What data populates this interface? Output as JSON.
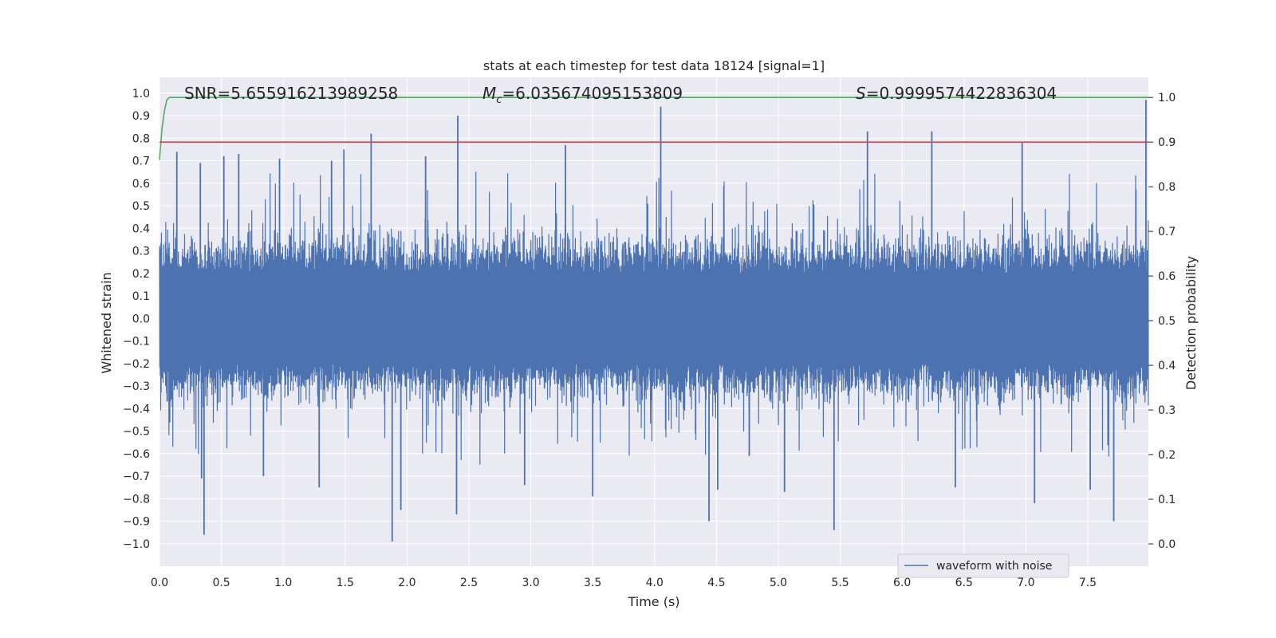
{
  "chart_data": {
    "type": "line",
    "title": "stats at each timestep for test data 18124 [signal=1]",
    "xlabel": "Time (s)",
    "ylabel_left": "Whitened strain",
    "ylabel_right": "Detection probability",
    "xlim": [
      0.0,
      7.99
    ],
    "ylim_left": [
      -1.1,
      1.07
    ],
    "ylim_right": [
      -0.05,
      1.045
    ],
    "x_ticks": [
      "0.0",
      "0.5",
      "1.0",
      "1.5",
      "2.0",
      "2.5",
      "3.0",
      "3.5",
      "4.0",
      "4.5",
      "5.0",
      "5.5",
      "6.0",
      "6.5",
      "7.0",
      "7.5"
    ],
    "x_tick_values": [
      0.0,
      0.5,
      1.0,
      1.5,
      2.0,
      2.5,
      3.0,
      3.5,
      4.0,
      4.5,
      5.0,
      5.5,
      6.0,
      6.5,
      7.0,
      7.5
    ],
    "y_left_ticks": [
      "1.0",
      "0.9",
      "0.8",
      "0.7",
      "0.6",
      "0.5",
      "0.4",
      "0.3",
      "0.2",
      "0.1",
      "0.0",
      "−0.1",
      "−0.2",
      "−0.3",
      "−0.4",
      "−0.5",
      "−0.6",
      "−0.7",
      "−0.8",
      "−0.9",
      "−1.0"
    ],
    "y_left_tick_values": [
      1.0,
      0.9,
      0.8,
      0.7,
      0.6,
      0.5,
      0.4,
      0.3,
      0.2,
      0.1,
      0.0,
      -0.1,
      -0.2,
      -0.3,
      -0.4,
      -0.5,
      -0.6,
      -0.7,
      -0.8,
      -0.9,
      -1.0
    ],
    "y_right_ticks": [
      "1.0",
      "0.9",
      "0.8",
      "0.7",
      "0.6",
      "0.5",
      "0.4",
      "0.3",
      "0.2",
      "0.1",
      "0.0"
    ],
    "y_right_tick_values": [
      1.0,
      0.9,
      0.8,
      0.7,
      0.6,
      0.5,
      0.4,
      0.3,
      0.2,
      0.1,
      0.0
    ],
    "grid": true,
    "annotations": {
      "snr": "SNR=5.655916213989258",
      "mc": "=6.035674095153809",
      "mc_symbol": "M",
      "mc_subscript": "c",
      "s": "=0.9999574422836304",
      "s_symbol": "S"
    },
    "legend": {
      "label": "waveform with noise",
      "placement": "lower-right"
    },
    "series": [
      {
        "name": "waveform with noise",
        "axis": "left",
        "color": "#4c72b0",
        "style": "noise",
        "num_points": 4096,
        "typical_band": [
          -0.42,
          0.42
        ],
        "seed": 18124,
        "peaks": [
          {
            "x": 0.14,
            "y": 0.74
          },
          {
            "x": 0.33,
            "y": 0.69
          },
          {
            "x": 0.52,
            "y": 0.72
          },
          {
            "x": 0.64,
            "y": 0.73
          },
          {
            "x": 0.97,
            "y": 0.71
          },
          {
            "x": 1.39,
            "y": 0.7
          },
          {
            "x": 1.49,
            "y": 0.75
          },
          {
            "x": 1.71,
            "y": 0.82
          },
          {
            "x": 2.15,
            "y": 0.72
          },
          {
            "x": 2.41,
            "y": 0.9
          },
          {
            "x": 3.28,
            "y": 0.77
          },
          {
            "x": 4.05,
            "y": 0.94
          },
          {
            "x": 5.72,
            "y": 0.83
          },
          {
            "x": 6.24,
            "y": 0.83
          },
          {
            "x": 6.97,
            "y": 0.78
          },
          {
            "x": 7.97,
            "y": 0.97
          },
          {
            "x": 0.34,
            "y": -0.71
          },
          {
            "x": 0.36,
            "y": -0.96
          },
          {
            "x": 0.84,
            "y": -0.7
          },
          {
            "x": 1.29,
            "y": -0.75
          },
          {
            "x": 1.88,
            "y": -0.99
          },
          {
            "x": 1.95,
            "y": -0.85
          },
          {
            "x": 2.4,
            "y": -0.87
          },
          {
            "x": 2.95,
            "y": -0.74
          },
          {
            "x": 3.5,
            "y": -0.79
          },
          {
            "x": 4.44,
            "y": -0.9
          },
          {
            "x": 4.51,
            "y": -0.76
          },
          {
            "x": 5.05,
            "y": -0.77
          },
          {
            "x": 5.45,
            "y": -0.94
          },
          {
            "x": 6.43,
            "y": -0.75
          },
          {
            "x": 7.07,
            "y": -0.82
          },
          {
            "x": 7.52,
            "y": -0.76
          },
          {
            "x": 7.71,
            "y": -0.9
          }
        ]
      },
      {
        "name": "detection probability",
        "axis": "right",
        "color": "#55a868",
        "x": [
          0.0,
          0.02,
          0.04,
          0.06,
          0.08,
          0.15,
          7.99
        ],
        "values": [
          0.86,
          0.93,
          0.97,
          0.995,
          1.0,
          1.0,
          1.0
        ]
      },
      {
        "name": "threshold",
        "axis": "right",
        "color": "#c44e52",
        "x": [
          0.0,
          7.99
        ],
        "values": [
          0.9,
          0.9
        ]
      }
    ]
  }
}
